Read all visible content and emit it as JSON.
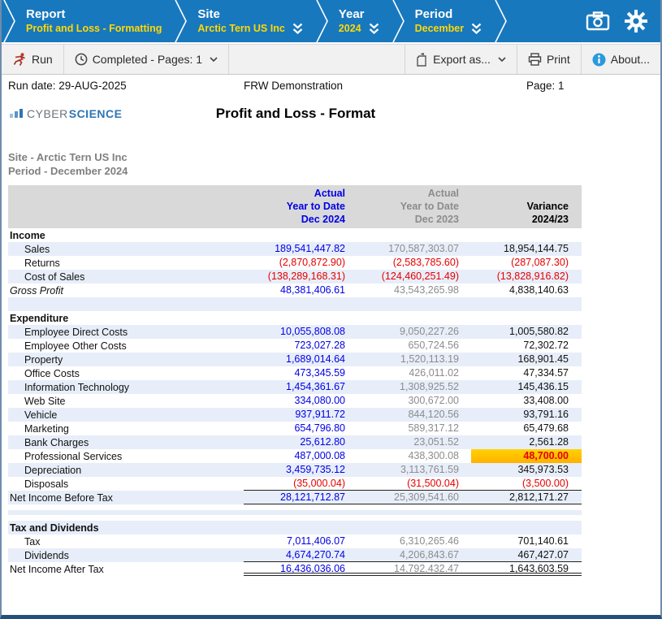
{
  "breadcrumb": {
    "items": [
      {
        "title": "Report",
        "value": "Profit and Loss - Formatting",
        "dropdown": false
      },
      {
        "title": "Site",
        "value": "Arctic Tern US Inc",
        "dropdown": true
      },
      {
        "title": "Year",
        "value": "2024",
        "dropdown": true
      },
      {
        "title": "Period",
        "value": "December",
        "dropdown": true
      }
    ]
  },
  "toolbar": {
    "run_label": "Run",
    "status_label": "Completed - Pages: 1",
    "export_label": "Export as...",
    "print_label": "Print",
    "about_label": "About..."
  },
  "page_header": {
    "run_date": "Run date: 29-AUG-2025",
    "center_text": "FRW Demonstration",
    "page_label": "Page: 1",
    "logo_gray": "CYBER",
    "logo_blue": "SCIENCE",
    "report_title": "Profit and Loss - Format",
    "site_line": "Site - Arctic Tern US Inc",
    "period_line": "Period - December 2024"
  },
  "colors": {
    "header_blue": "#1878be",
    "breadcrumb_yellow": "#ffd800",
    "row_shade": "#e7eef9",
    "col1_blue": "#0000e6",
    "col2_gray": "#8c8c8c",
    "negative_red": "#e60000",
    "highlight_gold": "#ffc400",
    "table_head_gray": "#d9d9d9"
  },
  "table": {
    "columns": [
      {
        "lines": [
          "Actual",
          "Year to Date",
          "Dec 2024"
        ]
      },
      {
        "lines": [
          "Actual",
          "Year to Date",
          "Dec 2023"
        ]
      },
      {
        "lines": [
          " ",
          "Variance",
          "2024/23"
        ]
      }
    ],
    "rows": [
      {
        "type": "section",
        "label": "Income",
        "shade": false
      },
      {
        "type": "detail",
        "label": "Sales",
        "shade": true,
        "v": [
          "189,541,447.82",
          "170,587,303.07",
          "18,954,144.75"
        ]
      },
      {
        "type": "detail",
        "label": "Returns",
        "shade": false,
        "v": [
          "(2,870,872.90)",
          "(2,583,785.60)",
          "(287,087.30)"
        ]
      },
      {
        "type": "detail",
        "label": "Cost of Sales",
        "shade": true,
        "v": [
          "(138,289,168.31)",
          "(124,460,251.49)",
          "(13,828,916.82)"
        ]
      },
      {
        "type": "total",
        "italic": true,
        "label": "Gross Profit",
        "shade": false,
        "v": [
          "48,381,406.61",
          "43,543,265.98",
          "4,838,140.63"
        ]
      },
      {
        "type": "blank",
        "shade": true,
        "h": 17
      },
      {
        "type": "section",
        "label": "Expenditure",
        "shade": false
      },
      {
        "type": "detail",
        "label": "Employee Direct Costs",
        "shade": true,
        "v": [
          "10,055,808.08",
          "9,050,227.26",
          "1,005,580.82"
        ]
      },
      {
        "type": "detail",
        "label": "Employee Other Costs",
        "shade": false,
        "v": [
          "723,027.28",
          "650,724.56",
          "72,302.72"
        ]
      },
      {
        "type": "detail",
        "label": "Property",
        "shade": true,
        "v": [
          "1,689,014.64",
          "1,520,113.19",
          "168,901.45"
        ]
      },
      {
        "type": "detail",
        "label": "Office Costs",
        "shade": false,
        "v": [
          "473,345.59",
          "426,011.02",
          "47,334.57"
        ]
      },
      {
        "type": "detail",
        "label": "Information Technology",
        "shade": true,
        "v": [
          "1,454,361.67",
          "1,308,925.52",
          "145,436.15"
        ]
      },
      {
        "type": "detail",
        "label": "Web Site",
        "shade": false,
        "v": [
          "334,080.00",
          "300,672.00",
          "33,408.00"
        ]
      },
      {
        "type": "detail",
        "label": "Vehicle",
        "shade": true,
        "v": [
          "937,911.72",
          "844,120.56",
          "93,791.16"
        ]
      },
      {
        "type": "detail",
        "label": "Marketing",
        "shade": false,
        "v": [
          "654,796.80",
          "589,317.12",
          "65,479.68"
        ]
      },
      {
        "type": "detail",
        "label": "Bank Charges",
        "shade": true,
        "v": [
          "25,612.80",
          "23,051.52",
          "2,561.28"
        ]
      },
      {
        "type": "detail",
        "label": "Professional Services",
        "shade": false,
        "hl": 2,
        "v": [
          "487,000.08",
          "438,300.08",
          "48,700.00"
        ]
      },
      {
        "type": "detail",
        "label": "Depreciation",
        "shade": true,
        "v": [
          "3,459,735.12",
          "3,113,761.59",
          "345,973.53"
        ]
      },
      {
        "type": "detail",
        "label": "Disposals",
        "shade": false,
        "underline": "single",
        "v": [
          "(35,000.04)",
          "(31,500.04)",
          "(3,500.00)"
        ]
      },
      {
        "type": "total",
        "label": "Net Income Before Tax",
        "shade": true,
        "underline": "single",
        "v": [
          "28,121,712.87",
          "25,309,541.60",
          "2,812,171.27"
        ]
      },
      {
        "type": "blank",
        "shade": false,
        "h": 7
      },
      {
        "type": "blank",
        "shade": true,
        "h": 6
      },
      {
        "type": "blank",
        "shade": false,
        "h": 7
      },
      {
        "type": "section",
        "label": "Tax and Dividends",
        "shade": true
      },
      {
        "type": "detail",
        "label": "Tax",
        "shade": false,
        "v": [
          "7,011,406.07",
          "6,310,265.46",
          "701,140.61"
        ]
      },
      {
        "type": "detail",
        "label": "Dividends",
        "shade": true,
        "underline": "single",
        "v": [
          "4,674,270.74",
          "4,206,843.67",
          "467,427.07"
        ]
      },
      {
        "type": "total",
        "label": "Net Income After Tax",
        "shade": false,
        "underline": "double",
        "v": [
          "16,436,036.06",
          "14,792,432.47",
          "1,643,603.59"
        ]
      }
    ]
  }
}
